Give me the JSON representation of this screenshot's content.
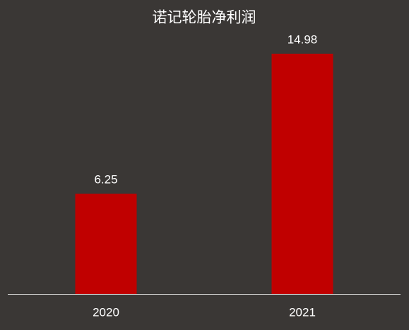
{
  "chart_data": {
    "type": "bar",
    "title": "诺记轮胎净利润",
    "categories": [
      "2020",
      "2021"
    ],
    "values": [
      6.25,
      14.98
    ],
    "color": "#c00000"
  }
}
